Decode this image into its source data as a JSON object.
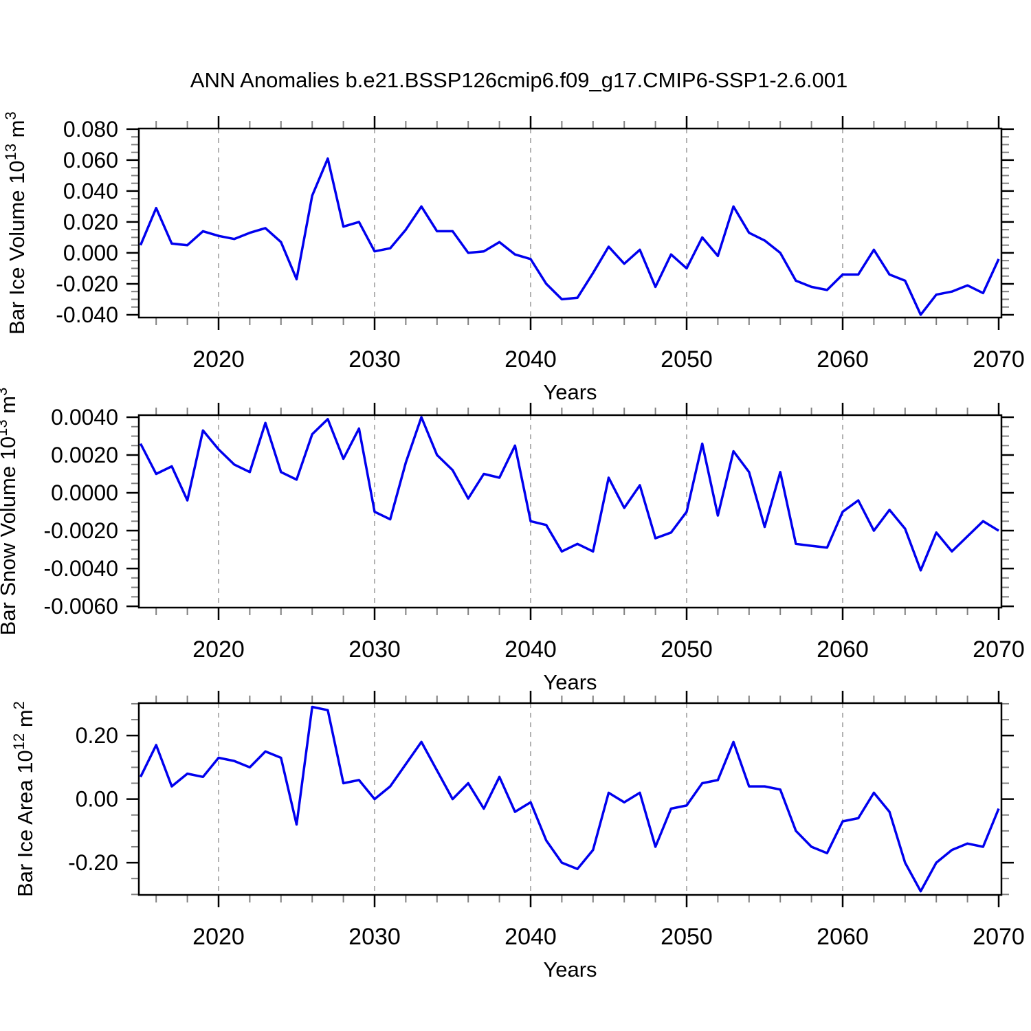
{
  "title": "ANN Anomalies b.e21.BSSP126cmip6.f09_g17.CMIP6-SSP1-2.6.001",
  "line_color": "#0000ee",
  "grid_color": "#999999",
  "minor_tick_color": "#808080",
  "x_axis": {
    "label": "Years",
    "range": [
      2015,
      2070
    ],
    "major_ticks": [
      2020,
      2030,
      2040,
      2050,
      2060,
      2070
    ],
    "major_tick_labels": [
      "2020",
      "2030",
      "2040",
      "2050",
      "2060",
      "2070"
    ],
    "minor_tick_step_years": 2,
    "dashed_gridlines": [
      2020,
      2030,
      2040,
      2050,
      2060
    ]
  },
  "chart_data": [
    {
      "type": "line",
      "name": "bar-ice-volume",
      "ylabel": {
        "prefix": "Bar Ice Volume 10",
        "exponent": "13",
        "unit": " m",
        "unit_exponent": "3"
      },
      "ytick_labels": [
        "0.080",
        "0.060",
        "0.040",
        "0.020",
        "0.000",
        "-0.020",
        "-0.040"
      ],
      "ytick_values": [
        0.08,
        0.06,
        0.04,
        0.02,
        0.0,
        -0.02,
        -0.04
      ],
      "y_minor_step": 0.005,
      "ylim": [
        -0.0418,
        0.0804
      ],
      "x_start_year": 2015,
      "values": [
        0.005,
        0.029,
        0.006,
        0.005,
        0.014,
        0.011,
        0.009,
        0.013,
        0.016,
        0.007,
        -0.017,
        0.037,
        0.061,
        0.017,
        0.02,
        0.001,
        0.003,
        0.015,
        0.03,
        0.014,
        0.014,
        0.0,
        0.001,
        0.007,
        -0.001,
        -0.004,
        -0.02,
        -0.03,
        -0.029,
        -0.013,
        0.004,
        -0.007,
        0.002,
        -0.022,
        -0.001,
        -0.01,
        0.01,
        -0.002,
        0.03,
        0.013,
        0.008,
        0.0,
        -0.018,
        -0.022,
        -0.024,
        -0.014,
        -0.014,
        0.002,
        -0.014,
        -0.018,
        -0.04,
        -0.027,
        -0.025,
        -0.021,
        -0.026,
        -0.004
      ]
    },
    {
      "type": "line",
      "name": "bar-snow-volume",
      "ylabel": {
        "prefix": "Bar Snow Volume 10",
        "exponent": "13",
        "unit": " m",
        "unit_exponent": "3"
      },
      "ytick_labels": [
        "0.0040",
        "0.0020",
        "0.0000",
        "-0.0020",
        "-0.0040",
        "-0.0060"
      ],
      "ytick_values": [
        0.004,
        0.002,
        0.0,
        -0.002,
        -0.004,
        -0.006
      ],
      "y_minor_step": 0.0005,
      "ylim": [
        -0.00607,
        0.00411
      ],
      "x_start_year": 2015,
      "values": [
        0.0026,
        0.001,
        0.0014,
        -0.0004,
        0.0033,
        0.0023,
        0.0015,
        0.0011,
        0.0037,
        0.0011,
        0.0007,
        0.0031,
        0.0039,
        0.0018,
        0.0034,
        -0.001,
        -0.0014,
        0.0016,
        0.004,
        0.002,
        0.0012,
        -0.0003,
        0.001,
        0.0008,
        0.0025,
        -0.0015,
        -0.0017,
        -0.0031,
        -0.0027,
        -0.0031,
        0.0008,
        -0.0008,
        0.0004,
        -0.0024,
        -0.0021,
        -0.001,
        0.0026,
        -0.0012,
        0.0022,
        0.0011,
        -0.0018,
        0.0011,
        -0.0027,
        -0.0028,
        -0.0029,
        -0.001,
        -0.0004,
        -0.002,
        -0.0009,
        -0.0019,
        -0.0041,
        -0.0021,
        -0.0031,
        -0.0023,
        -0.0015,
        -0.002
      ]
    },
    {
      "type": "line",
      "name": "bar-ice-area",
      "ylabel": {
        "prefix": "Bar Ice Area 10",
        "exponent": "12",
        "unit": " m",
        "unit_exponent": "2"
      },
      "ytick_labels": [
        "0.20",
        "0.00",
        "-0.20"
      ],
      "ytick_values": [
        0.2,
        0.0,
        -0.2
      ],
      "y_minor_step": 0.05,
      "ylim": [
        -0.3015,
        0.302
      ],
      "x_start_year": 2015,
      "values": [
        0.07,
        0.17,
        0.04,
        0.08,
        0.07,
        0.13,
        0.12,
        0.1,
        0.15,
        0.13,
        -0.08,
        0.29,
        0.28,
        0.05,
        0.06,
        0.0,
        0.04,
        0.11,
        0.18,
        0.09,
        0.0,
        0.05,
        -0.03,
        0.07,
        -0.04,
        -0.01,
        -0.13,
        -0.2,
        -0.22,
        -0.16,
        0.02,
        -0.01,
        0.02,
        -0.15,
        -0.03,
        -0.02,
        0.05,
        0.06,
        0.18,
        0.04,
        0.04,
        0.03,
        -0.1,
        -0.15,
        -0.17,
        -0.07,
        -0.06,
        0.02,
        -0.04,
        -0.2,
        -0.29,
        -0.2,
        -0.16,
        -0.14,
        -0.15,
        -0.03
      ]
    }
  ]
}
